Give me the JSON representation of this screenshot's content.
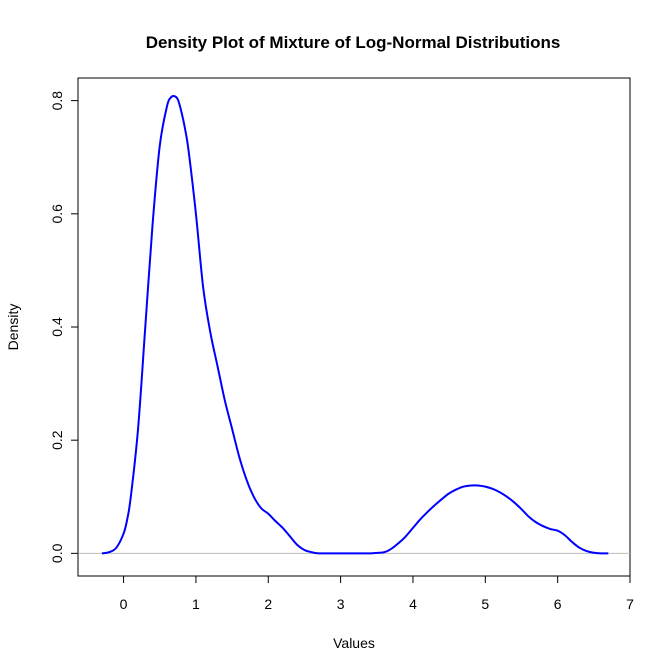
{
  "chart_data": {
    "type": "line",
    "title": "Density Plot of Mixture of Log-Normal Distributions",
    "xlabel": "Values",
    "ylabel": "Density",
    "xlim": [
      -0.63,
      7.0
    ],
    "ylim": [
      -0.04,
      0.84
    ],
    "x_ticks": [
      0,
      1,
      2,
      3,
      4,
      5,
      6,
      7
    ],
    "x_tick_labels": [
      "0",
      "1",
      "2",
      "3",
      "4",
      "5",
      "6",
      "7"
    ],
    "y_ticks": [
      0.0,
      0.2,
      0.4,
      0.6,
      0.8
    ],
    "y_tick_labels": [
      "0.0",
      "0.2",
      "0.4",
      "0.6",
      "0.8"
    ],
    "baseline": 0,
    "baseline_color": "#bebebe",
    "line_color": "#0000ff",
    "grid": false,
    "series": [
      {
        "x": [
          -0.3,
          -0.2,
          -0.1,
          0.0,
          0.05,
          0.1,
          0.2,
          0.3,
          0.4,
          0.5,
          0.6,
          0.65,
          0.7,
          0.75,
          0.8,
          0.85,
          0.9,
          1.0,
          1.1,
          1.2,
          1.3,
          1.4,
          1.5,
          1.6,
          1.7,
          1.8,
          1.9,
          2.0,
          2.1,
          2.2,
          2.3,
          2.4,
          2.5,
          2.6,
          2.7,
          2.8,
          3.0,
          3.2,
          3.4,
          3.6,
          3.7,
          3.8,
          3.9,
          4.0,
          4.1,
          4.2,
          4.3,
          4.4,
          4.5,
          4.6,
          4.7,
          4.8,
          4.9,
          5.0,
          5.1,
          5.2,
          5.3,
          5.4,
          5.5,
          5.6,
          5.7,
          5.8,
          5.9,
          6.0,
          6.1,
          6.2,
          6.3,
          6.4,
          6.5,
          6.6,
          6.7
        ],
        "y": [
          0.0,
          0.002,
          0.01,
          0.035,
          0.06,
          0.1,
          0.22,
          0.4,
          0.58,
          0.72,
          0.79,
          0.805,
          0.808,
          0.802,
          0.78,
          0.75,
          0.71,
          0.6,
          0.47,
          0.39,
          0.33,
          0.27,
          0.22,
          0.17,
          0.13,
          0.1,
          0.08,
          0.07,
          0.057,
          0.045,
          0.03,
          0.015,
          0.006,
          0.002,
          0.0,
          0.0,
          0.0,
          0.0,
          0.0,
          0.002,
          0.008,
          0.018,
          0.03,
          0.045,
          0.06,
          0.073,
          0.085,
          0.096,
          0.106,
          0.113,
          0.118,
          0.12,
          0.12,
          0.118,
          0.114,
          0.108,
          0.1,
          0.09,
          0.078,
          0.065,
          0.055,
          0.048,
          0.043,
          0.04,
          0.032,
          0.02,
          0.01,
          0.004,
          0.001,
          0.0,
          0.0
        ]
      }
    ]
  }
}
